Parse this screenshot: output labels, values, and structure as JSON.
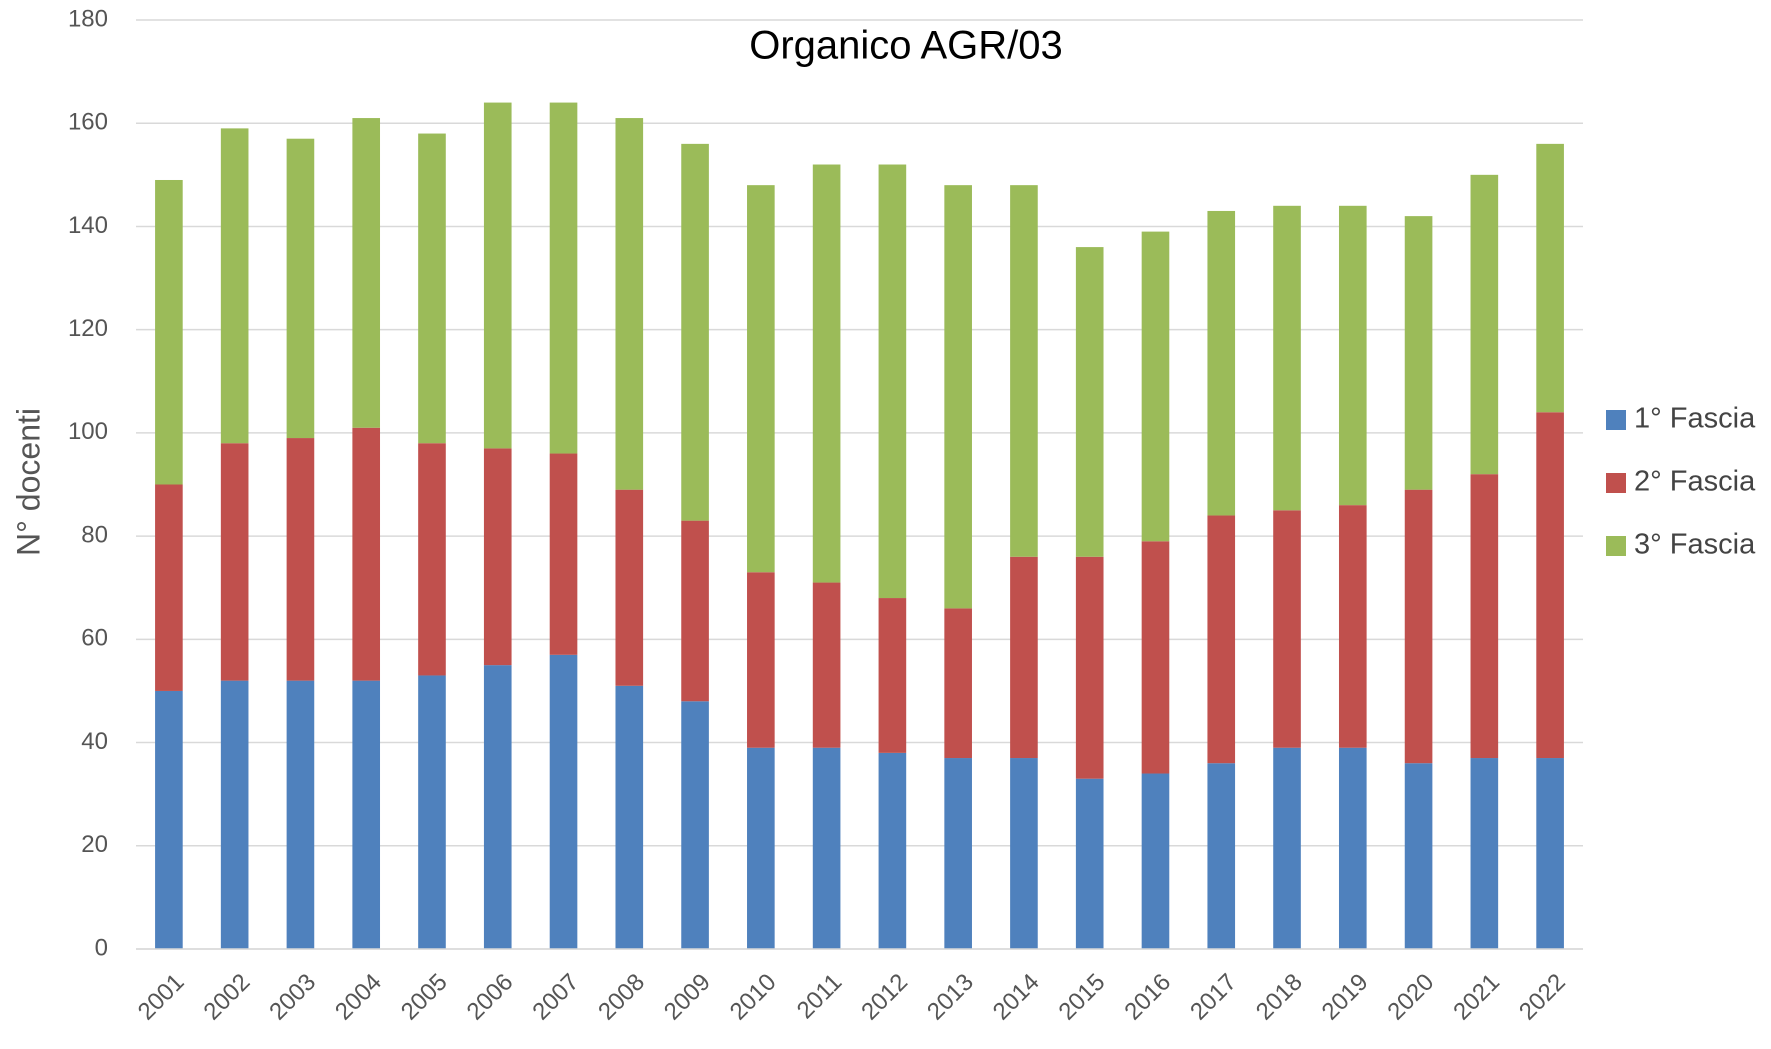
{
  "chart_data": {
    "type": "stacked_bar",
    "title": "Organico AGR/03",
    "y_label": "N° docenti",
    "categories": [
      "2001",
      "2002",
      "2003",
      "2004",
      "2005",
      "2006",
      "2007",
      "2008",
      "2009",
      "2010",
      "2011",
      "2012",
      "2013",
      "2014",
      "2015",
      "2016",
      "2017",
      "2018",
      "2019",
      "2020",
      "2021",
      "2022"
    ],
    "series": [
      {
        "name": "1° Fascia",
        "color": "#4f81bd",
        "values": [
          50,
          52,
          52,
          52,
          53,
          55,
          57,
          51,
          48,
          39,
          39,
          38,
          37,
          37,
          33,
          34,
          36,
          39,
          39,
          36,
          37,
          37
        ]
      },
      {
        "name": "2° Fascia",
        "color": "#c0504d",
        "values": [
          40,
          46,
          47,
          49,
          45,
          42,
          39,
          38,
          35,
          34,
          32,
          30,
          29,
          39,
          43,
          45,
          48,
          46,
          47,
          53,
          55,
          67
        ]
      },
      {
        "name": "3° Fascia",
        "color": "#9bbb59",
        "values": [
          59,
          61,
          58,
          60,
          60,
          67,
          68,
          72,
          73,
          75,
          81,
          84,
          82,
          72,
          60,
          60,
          59,
          59,
          58,
          53,
          58,
          52
        ]
      }
    ],
    "ylim": [
      0,
      180
    ],
    "yticks": [
      0,
      20,
      40,
      60,
      80,
      100,
      120,
      140,
      160,
      180
    ],
    "grid": true,
    "legend": "right"
  }
}
